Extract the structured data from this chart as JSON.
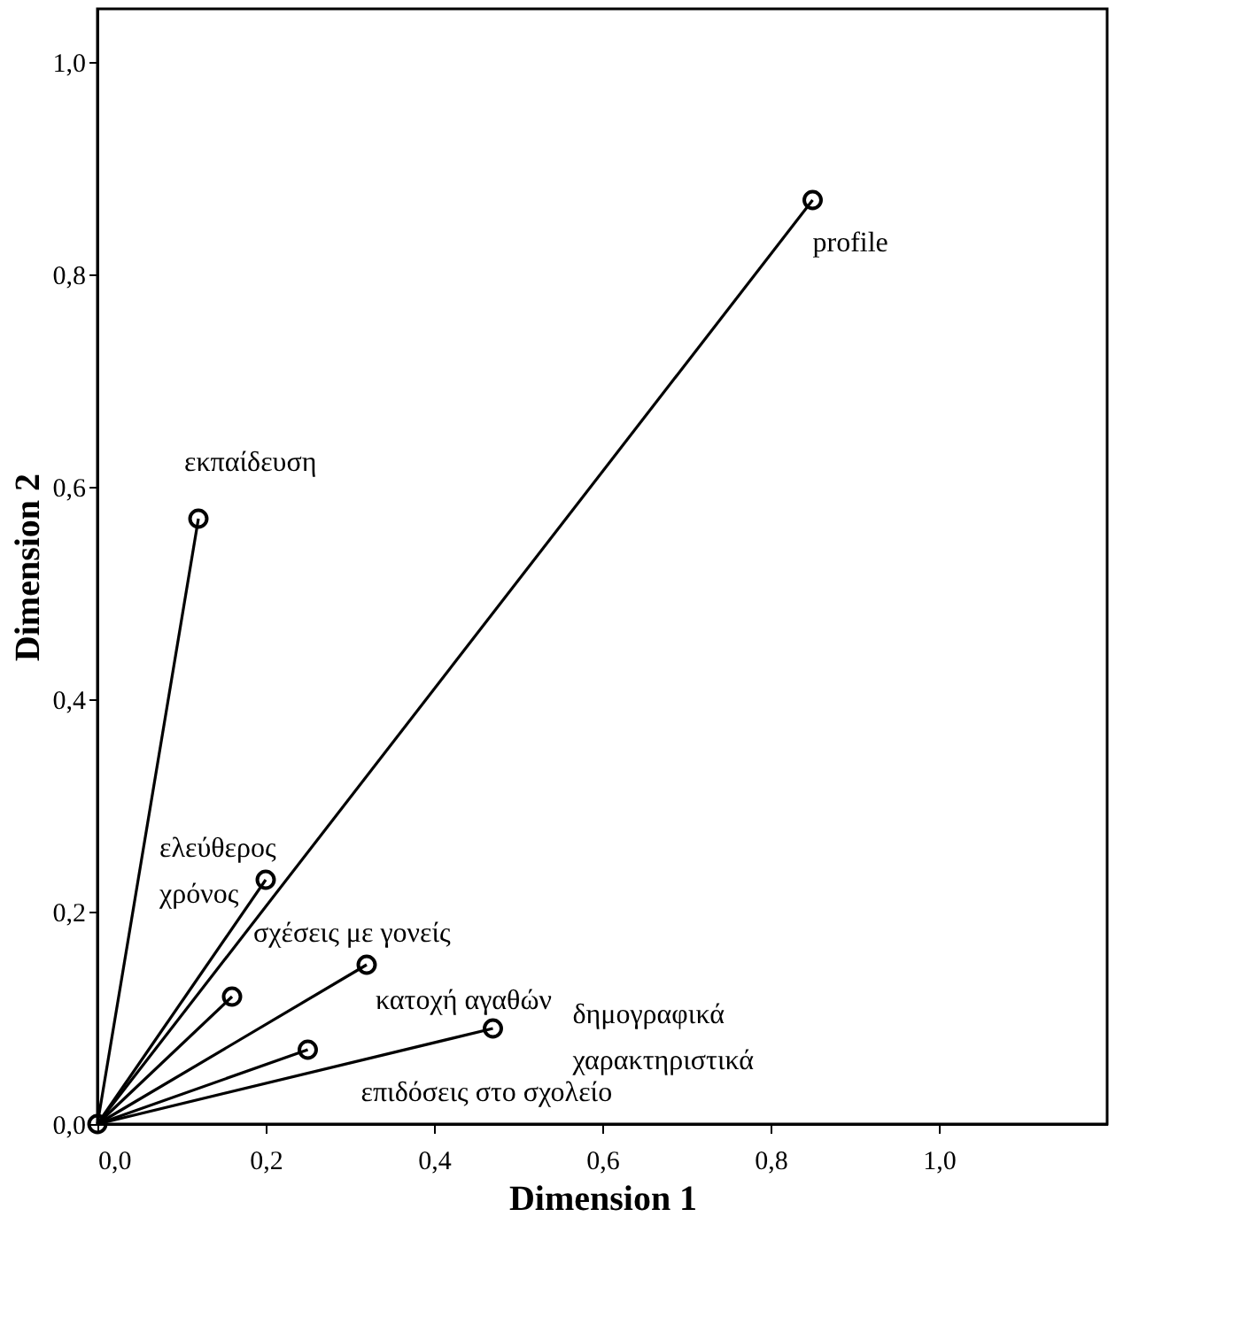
{
  "chart_data": {
    "type": "scatter",
    "xlabel": "Dimension 1",
    "ylabel": "Dimension 2",
    "xlim": [
      0,
      1.2
    ],
    "ylim": [
      0,
      1.05
    ],
    "xticks": [
      {
        "value": 0,
        "label": "0,0"
      },
      {
        "value": 0.2,
        "label": "0,2"
      },
      {
        "value": 0.4,
        "label": "0,4"
      },
      {
        "value": 0.6,
        "label": "0,6"
      },
      {
        "value": 0.8,
        "label": "0,8"
      },
      {
        "value": 1.0,
        "label": "1,0"
      }
    ],
    "yticks": [
      {
        "value": 0,
        "label": "0,0"
      },
      {
        "value": 0.2,
        "label": "0,2"
      },
      {
        "value": 0.4,
        "label": "0,4"
      },
      {
        "value": 0.6,
        "label": "0,6"
      },
      {
        "value": 0.8,
        "label": "0,8"
      },
      {
        "value": 1.0,
        "label": "1,0"
      }
    ],
    "grid": false,
    "marker": "circle",
    "series": [
      {
        "type": "line",
        "marker": "none",
        "color": "#000000",
        "x": [
          0,
          0.85
        ],
        "values": [
          0,
          0.87
        ]
      },
      {
        "type": "line",
        "marker": "none",
        "color": "#000000",
        "x": [
          0,
          0.12
        ],
        "values": [
          0,
          0.57
        ]
      },
      {
        "type": "line",
        "marker": "none",
        "color": "#000000",
        "x": [
          0,
          0.2
        ],
        "values": [
          0,
          0.23
        ]
      },
      {
        "type": "line",
        "marker": "none",
        "color": "#000000",
        "x": [
          0,
          0.16
        ],
        "values": [
          0,
          0.12
        ]
      },
      {
        "type": "line",
        "marker": "none",
        "color": "#000000",
        "x": [
          0,
          0.32
        ],
        "values": [
          0,
          0.15
        ]
      },
      {
        "type": "line",
        "marker": "none",
        "color": "#000000",
        "x": [
          0,
          0.25
        ],
        "values": [
          0,
          0.07
        ]
      },
      {
        "type": "line",
        "marker": "none",
        "color": "#000000",
        "x": [
          0,
          0.47
        ],
        "values": [
          0,
          0.09
        ]
      },
      {
        "color": "#000000",
        "x": [
          0,
          0.85,
          0.12,
          0.2,
          0.16,
          0.32,
          0.25,
          0.47
        ],
        "values": [
          0,
          0.87,
          0.57,
          0.23,
          0.12,
          0.15,
          0.07,
          0.09
        ]
      }
    ],
    "annotations": [
      {
        "text": "profile",
        "x": 0.85,
        "y": 0.87
      },
      {
        "text": "εκπαίδευση",
        "x": 0.12,
        "y": 0.57
      },
      {
        "text": "ελεύθερος χρόνος",
        "x": 0.2,
        "y": 0.23
      },
      {
        "text": "σχέσεις με γονείς",
        "x": 0.16,
        "y": 0.12
      },
      {
        "text": "κατοχή αγαθών",
        "x": 0.32,
        "y": 0.15
      },
      {
        "text": "επιδόσεις στο σχολείο",
        "x": 0.25,
        "y": 0.07
      },
      {
        "text": "δημογραφικά χαρακτηριστικά",
        "x": 0.47,
        "y": 0.09
      }
    ]
  }
}
